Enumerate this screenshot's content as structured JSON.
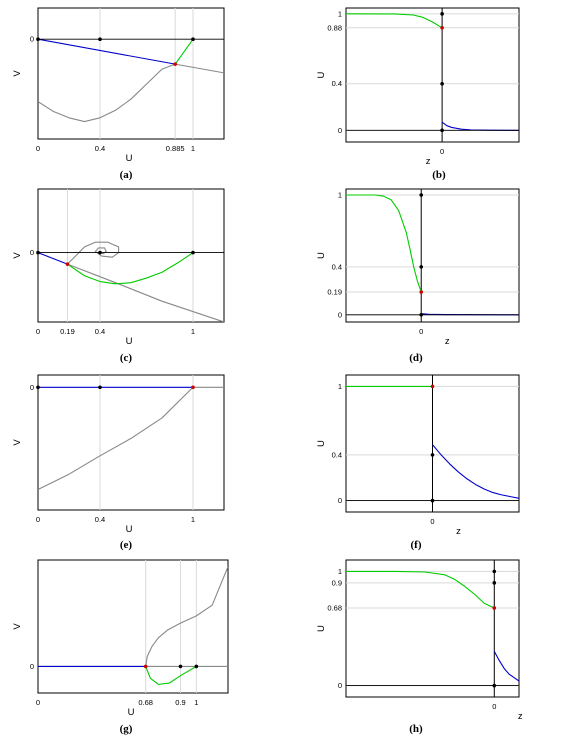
{
  "chart_data": [
    {
      "panel": "(a)",
      "type": "line",
      "xlabel": "U",
      "ylabel": "V",
      "xticks": [
        "0",
        "0.4",
        "0.885",
        "1"
      ],
      "yticks": [
        "0"
      ],
      "xlim": [
        0,
        1.2
      ],
      "ylim": [
        -0.8,
        0.25
      ],
      "series": [
        {
          "color": "#888888",
          "points": [
            [
              0,
              -0.5
            ],
            [
              0.1,
              -0.58
            ],
            [
              0.2,
              -0.63
            ],
            [
              0.3,
              -0.66
            ],
            [
              0.4,
              -0.63
            ],
            [
              0.5,
              -0.57
            ],
            [
              0.6,
              -0.48
            ],
            [
              0.7,
              -0.36
            ],
            [
              0.8,
              -0.24
            ],
            [
              0.885,
              -0.2
            ]
          ]
        },
        {
          "color": "#888888",
          "points": [
            [
              0.885,
              -0.2
            ],
            [
              1.2,
              -0.27
            ]
          ]
        },
        {
          "color": "#0000cc",
          "points": [
            [
              0,
              0
            ],
            [
              0.885,
              -0.2
            ]
          ]
        },
        {
          "color": "#00cc00",
          "points": [
            [
              0.885,
              -0.2
            ],
            [
              1,
              0
            ]
          ]
        },
        {
          "color": "#000000",
          "points": [
            [
              0,
              0
            ],
            [
              1.2,
              0
            ]
          ]
        }
      ],
      "markers": [
        {
          "x": 0,
          "y": 0,
          "color": "#000000"
        },
        {
          "x": 0.4,
          "y": 0,
          "color": "#000000"
        },
        {
          "x": 1,
          "y": 0,
          "color": "#000000"
        },
        {
          "x": 0.885,
          "y": -0.2,
          "color": "#cc0000"
        }
      ]
    },
    {
      "panel": "(b)",
      "type": "line",
      "xlabel": "z",
      "ylabel": "U",
      "xticks": [
        "0"
      ],
      "yticks": [
        "0",
        "0.4",
        "0.88",
        "1"
      ],
      "xlim": [
        -10,
        8
      ],
      "ylim": [
        -0.1,
        1.05
      ],
      "vline": 0,
      "series": [
        {
          "color": "#00cc00",
          "points": [
            [
              -10,
              1
            ],
            [
              -5,
              0.999
            ],
            [
              -3,
              0.99
            ],
            [
              -2,
              0.97
            ],
            [
              -1,
              0.93
            ],
            [
              0,
              0.88
            ]
          ]
        },
        {
          "color": "#0000cc",
          "points": [
            [
              0,
              0.07
            ],
            [
              0.5,
              0.04
            ],
            [
              1,
              0.025
            ],
            [
              2,
              0.01
            ],
            [
              3,
              0.004
            ],
            [
              5,
              0.001
            ],
            [
              8,
              0
            ]
          ]
        },
        {
          "color": "#000000",
          "points": [
            [
              -10,
              0
            ],
            [
              8,
              0
            ]
          ]
        }
      ],
      "markers": [
        {
          "x": 0,
          "y": 1,
          "color": "#000000"
        },
        {
          "x": 0,
          "y": 0.4,
          "color": "#000000"
        },
        {
          "x": 0,
          "y": 0,
          "color": "#000000"
        },
        {
          "x": 0,
          "y": 0.88,
          "color": "#cc0000"
        }
      ]
    },
    {
      "panel": "(c)",
      "type": "line",
      "xlabel": "U",
      "ylabel": "V",
      "xticks": [
        "0",
        "0.19",
        "0.4",
        "1"
      ],
      "yticks": [
        "0"
      ],
      "xlim": [
        0,
        1.2
      ],
      "ylim": [
        -0.6,
        0.55
      ],
      "series": [
        {
          "color": "#888888",
          "points": [
            [
              0.19,
              -0.1
            ],
            [
              0.25,
              -0.02
            ],
            [
              0.3,
              0.05
            ],
            [
              0.37,
              0.09
            ],
            [
              0.45,
              0.09
            ],
            [
              0.52,
              0.05
            ],
            [
              0.52,
              0
            ],
            [
              0.48,
              -0.04
            ],
            [
              0.41,
              -0.03
            ],
            [
              0.37,
              0.01
            ],
            [
              0.39,
              0.04
            ],
            [
              0.43,
              0.04
            ],
            [
              0.44,
              0.01
            ],
            [
              0.42,
              -0.01
            ],
            [
              0.4,
              0
            ]
          ]
        },
        {
          "color": "#888888",
          "points": [
            [
              0.19,
              -0.1
            ],
            [
              0.5,
              -0.26
            ],
            [
              0.8,
              -0.42
            ],
            [
              1.2,
              -0.6
            ]
          ]
        },
        {
          "color": "#0000cc",
          "points": [
            [
              0,
              0
            ],
            [
              0.19,
              -0.1
            ]
          ]
        },
        {
          "color": "#00cc00",
          "points": [
            [
              0.19,
              -0.1
            ],
            [
              0.3,
              -0.2
            ],
            [
              0.4,
              -0.25
            ],
            [
              0.5,
              -0.27
            ],
            [
              0.6,
              -0.26
            ],
            [
              0.7,
              -0.22
            ],
            [
              0.8,
              -0.17
            ],
            [
              0.9,
              -0.09
            ],
            [
              1,
              0
            ]
          ]
        },
        {
          "color": "#000000",
          "points": [
            [
              0,
              0
            ],
            [
              1.2,
              0
            ]
          ]
        }
      ],
      "markers": [
        {
          "x": 0,
          "y": 0,
          "color": "#000000"
        },
        {
          "x": 0.4,
          "y": 0,
          "color": "#000000"
        },
        {
          "x": 1,
          "y": 0,
          "color": "#000000"
        },
        {
          "x": 0.19,
          "y": -0.1,
          "color": "#cc0000"
        }
      ]
    },
    {
      "panel": "(d)",
      "type": "line",
      "xlabel": "z",
      "ylabel": "U",
      "xticks": [
        "0"
      ],
      "yticks": [
        "0",
        "0.19",
        "0.4",
        "1"
      ],
      "xlim": [
        -10,
        13
      ],
      "ylim": [
        -0.06,
        1.05
      ],
      "vline": 0,
      "series": [
        {
          "color": "#00cc00",
          "points": [
            [
              -10,
              1
            ],
            [
              -6,
              1
            ],
            [
              -5,
              0.99
            ],
            [
              -4,
              0.96
            ],
            [
              -3,
              0.87
            ],
            [
              -2,
              0.69
            ],
            [
              -1.5,
              0.55
            ],
            [
              -1,
              0.4
            ],
            [
              -0.5,
              0.28
            ],
            [
              0,
              0.19
            ]
          ]
        },
        {
          "color": "#0000cc",
          "points": [
            [
              0,
              0.01
            ],
            [
              1,
              0.004
            ],
            [
              3,
              0.002
            ],
            [
              13,
              0
            ]
          ]
        },
        {
          "color": "#000000",
          "points": [
            [
              -10,
              0
            ],
            [
              13,
              0
            ]
          ]
        }
      ],
      "markers": [
        {
          "x": 0,
          "y": 1,
          "color": "#000000"
        },
        {
          "x": 0,
          "y": 0.4,
          "color": "#000000"
        },
        {
          "x": 0,
          "y": 0,
          "color": "#000000"
        },
        {
          "x": 0,
          "y": 0.19,
          "color": "#cc0000"
        }
      ]
    },
    {
      "panel": "(e)",
      "type": "line",
      "xlabel": "U",
      "ylabel": "V",
      "xticks": [
        "0",
        "0.4",
        "1"
      ],
      "yticks": [
        "0"
      ],
      "xlim": [
        0,
        1.2
      ],
      "ylim": [
        -1.2,
        0.12
      ],
      "series": [
        {
          "color": "#888888",
          "points": [
            [
              0,
              -1
            ],
            [
              0.2,
              -0.85
            ],
            [
              0.4,
              -0.67
            ],
            [
              0.6,
              -0.5
            ],
            [
              0.8,
              -0.3
            ],
            [
              1,
              0
            ]
          ]
        },
        {
          "color": "#888888",
          "points": [
            [
              1,
              0
            ],
            [
              1.2,
              0
            ]
          ]
        },
        {
          "color": "#0000cc",
          "points": [
            [
              0,
              0
            ],
            [
              1,
              0
            ]
          ]
        }
      ],
      "markers": [
        {
          "x": 0,
          "y": 0,
          "color": "#000000"
        },
        {
          "x": 0.4,
          "y": 0,
          "color": "#000000"
        },
        {
          "x": 1,
          "y": 0,
          "color": "#cc0000"
        }
      ]
    },
    {
      "panel": "(f)",
      "type": "line",
      "xlabel": "z",
      "ylabel": "U",
      "xticks": [
        "0"
      ],
      "yticks": [
        "0",
        "0.4",
        "1"
      ],
      "xlim": [
        -10,
        10
      ],
      "ylim": [
        -0.1,
        1.1
      ],
      "vline": 0,
      "series": [
        {
          "color": "#00cc00",
          "points": [
            [
              -10,
              1
            ],
            [
              0,
              1
            ]
          ]
        },
        {
          "color": "#0000cc",
          "points": [
            [
              0,
              0.49
            ],
            [
              1,
              0.4
            ],
            [
              2,
              0.32
            ],
            [
              3,
              0.25
            ],
            [
              4,
              0.19
            ],
            [
              5,
              0.14
            ],
            [
              6,
              0.1
            ],
            [
              7,
              0.07
            ],
            [
              8,
              0.05
            ],
            [
              10,
              0.02
            ]
          ]
        },
        {
          "color": "#000000",
          "points": [
            [
              -10,
              0
            ],
            [
              10,
              0
            ]
          ]
        }
      ],
      "markers": [
        {
          "x": 0,
          "y": 0.4,
          "color": "#000000"
        },
        {
          "x": 0,
          "y": 0,
          "color": "#000000"
        },
        {
          "x": 0,
          "y": 1,
          "color": "#cc0000"
        }
      ]
    },
    {
      "panel": "(g)",
      "type": "line",
      "xlabel": "U",
      "ylabel": "V",
      "xticks": [
        "0",
        "0.68",
        "0.9",
        "1"
      ],
      "yticks": [
        "0"
      ],
      "xlim": [
        0,
        1.2
      ],
      "ylim": [
        -0.4,
        1.6
      ],
      "series": [
        {
          "color": "#888888",
          "points": [
            [
              0.68,
              0
            ],
            [
              0.69,
              0.15
            ],
            [
              0.72,
              0.3
            ],
            [
              0.76,
              0.43
            ],
            [
              0.82,
              0.55
            ],
            [
              0.9,
              0.65
            ],
            [
              1,
              0.76
            ],
            [
              1.1,
              0.92
            ],
            [
              1.2,
              1.5
            ]
          ]
        },
        {
          "color": "#888888",
          "points": [
            [
              0,
              0
            ],
            [
              1.2,
              0
            ]
          ]
        },
        {
          "color": "#0000cc",
          "points": [
            [
              0,
              0
            ],
            [
              0.68,
              0
            ]
          ]
        },
        {
          "color": "#00cc00",
          "points": [
            [
              0.68,
              0
            ],
            [
              0.71,
              -0.18
            ],
            [
              0.76,
              -0.27
            ],
            [
              0.83,
              -0.25
            ],
            [
              0.9,
              -0.14
            ],
            [
              1,
              0
            ]
          ]
        }
      ],
      "markers": [
        {
          "x": 0.9,
          "y": 0,
          "color": "#000000"
        },
        {
          "x": 1,
          "y": 0,
          "color": "#000000"
        },
        {
          "x": 0.68,
          "y": 0,
          "color": "#cc0000"
        }
      ]
    },
    {
      "panel": "(h)",
      "type": "line",
      "xlabel": "z",
      "ylabel": "U",
      "xticks": [
        "0"
      ],
      "yticks": [
        "0",
        "0.68",
        "0.9",
        "1"
      ],
      "xlim": [
        -15,
        2.5
      ],
      "ylim": [
        -0.1,
        1.1
      ],
      "vline": 0,
      "series": [
        {
          "color": "#00cc00",
          "points": [
            [
              -15,
              1
            ],
            [
              -10,
              1
            ],
            [
              -7,
              0.995
            ],
            [
              -5,
              0.97
            ],
            [
              -4,
              0.93
            ],
            [
              -3,
              0.87
            ],
            [
              -2,
              0.8
            ],
            [
              -1,
              0.72
            ],
            [
              0,
              0.68
            ]
          ]
        },
        {
          "color": "#0000cc",
          "points": [
            [
              0,
              0.3
            ],
            [
              0.5,
              0.22
            ],
            [
              1,
              0.15
            ],
            [
              1.5,
              0.1
            ],
            [
              2,
              0.07
            ],
            [
              2.5,
              0.04
            ]
          ]
        },
        {
          "color": "#000000",
          "points": [
            [
              -15,
              0
            ],
            [
              2.5,
              0
            ]
          ]
        }
      ],
      "markers": [
        {
          "x": 0,
          "y": 1,
          "color": "#000000"
        },
        {
          "x": 0,
          "y": 0.9,
          "color": "#000000"
        },
        {
          "x": 0,
          "y": 0,
          "color": "#000000"
        },
        {
          "x": 0,
          "y": 0.68,
          "color": "#cc0000"
        }
      ]
    }
  ]
}
